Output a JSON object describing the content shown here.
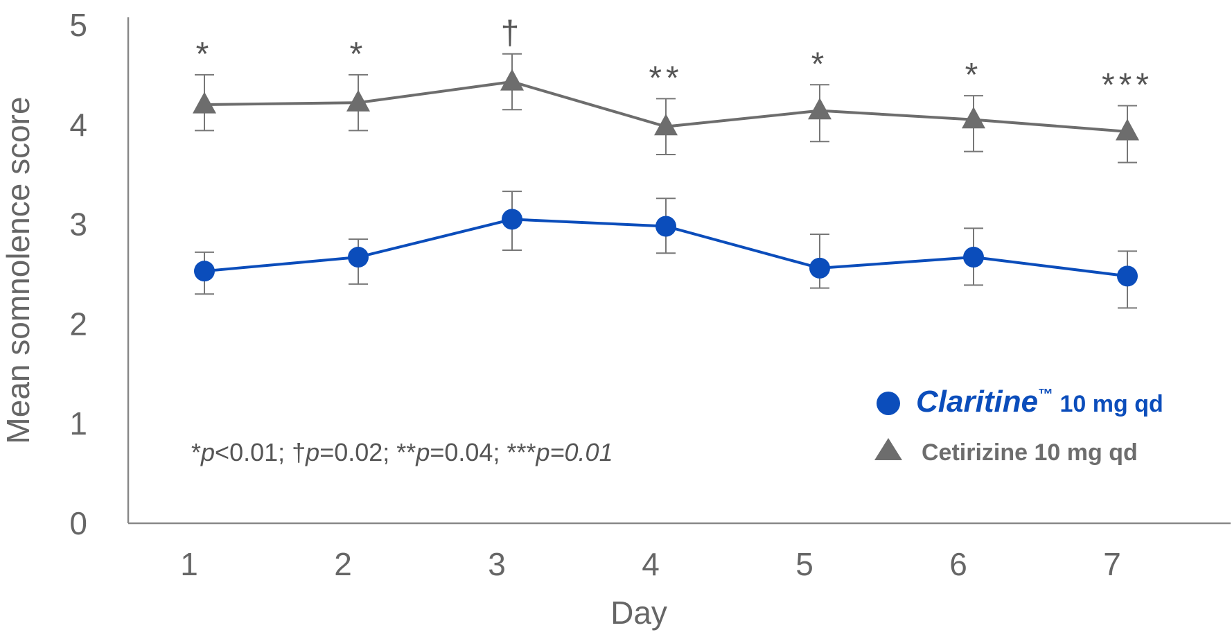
{
  "chart_data": {
    "type": "line",
    "xlabel": "Day",
    "ylabel": "Mean somnolence score",
    "ylim": [
      0,
      5
    ],
    "yticks": [
      "0",
      "1",
      "2",
      "3",
      "4",
      "5"
    ],
    "categories": [
      "1",
      "2",
      "3",
      "4",
      "5",
      "6",
      "7"
    ],
    "grid": false,
    "legend_position": "bottom-right",
    "series": [
      {
        "name": "Cetirizine 10 mg qd",
        "marker": "triangle",
        "color": "#6d6d6d",
        "values": [
          4.2,
          4.22,
          4.43,
          3.98,
          4.14,
          4.05,
          3.93
        ],
        "error_low": [
          3.94,
          3.94,
          4.15,
          3.7,
          3.83,
          3.73,
          3.62
        ],
        "error_high": [
          4.5,
          4.5,
          4.71,
          4.26,
          4.4,
          4.29,
          4.19
        ]
      },
      {
        "name_brand": "Claritine",
        "name_tm": "™",
        "name_rest": " 10 mg qd",
        "marker": "circle",
        "color": "#0b4dbb",
        "values": [
          2.53,
          2.67,
          3.05,
          2.98,
          2.56,
          2.67,
          2.48
        ],
        "error_low": [
          2.3,
          2.4,
          2.74,
          2.71,
          2.36,
          2.39,
          2.16
        ],
        "error_high": [
          2.72,
          2.85,
          3.33,
          3.26,
          2.9,
          2.96,
          2.73
        ]
      }
    ],
    "significance_marks": [
      "*",
      "*",
      "†",
      "**",
      "*",
      "*",
      "***"
    ],
    "footnote": {
      "parts": [
        {
          "text": "*",
          "italic": false
        },
        {
          "text": "p",
          "italic": true
        },
        {
          "text": "<0.01; ",
          "italic": false
        },
        {
          "text": "†",
          "italic": false
        },
        {
          "text": "p",
          "italic": true
        },
        {
          "text": "=0.02; **",
          "italic": false
        },
        {
          "text": "p",
          "italic": true
        },
        {
          "text": "=0.04; ***",
          "italic": false
        },
        {
          "text": "p=0.01",
          "italic": true
        }
      ]
    }
  }
}
